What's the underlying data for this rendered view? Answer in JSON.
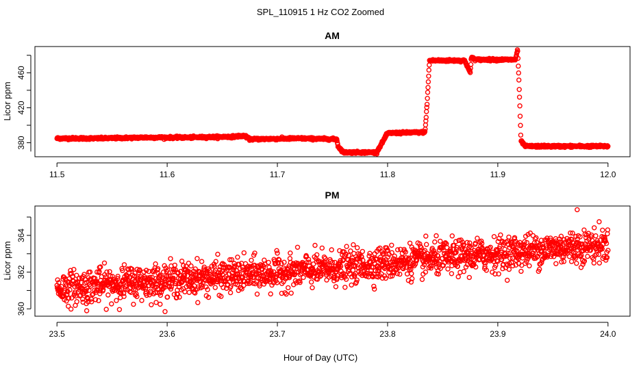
{
  "figure": {
    "title": "SPL_110915  1 Hz CO2 Zoomed",
    "xlabel": "Hour of Day (UTC)"
  },
  "colors": {
    "points": "#ff0000",
    "axes": "#000000",
    "background": "#ffffff"
  },
  "chart_data": [
    {
      "type": "scatter",
      "title": "AM",
      "xlabel": "Hour of Day (UTC)",
      "ylabel": "Licor ppm",
      "xlim": [
        11.5,
        12.0
      ],
      "ylim": [
        364,
        490
      ],
      "xticks": [
        11.5,
        11.6,
        11.7,
        11.8,
        11.9,
        12.0
      ],
      "xtick_labels": [
        "11.5",
        "11.6",
        "11.7",
        "11.8",
        "11.9",
        "12.0"
      ],
      "yticks": [
        380,
        420,
        460
      ],
      "ytick_labels": [
        "380",
        "420",
        "460"
      ],
      "grid": false,
      "marker": "open-circle",
      "series": [
        {
          "x": [
            11.5,
            11.54,
            11.58,
            11.62,
            11.66,
            11.67,
            11.675,
            11.72,
            11.754,
            11.755,
            11.76,
            11.79,
            11.795,
            11.8,
            11.834,
            11.836,
            11.838,
            11.87,
            11.875,
            11.876,
            11.88,
            11.916,
            11.918,
            11.919,
            11.92,
            11.921,
            11.925,
            11.96,
            12.0
          ],
          "y": [
            385,
            385,
            386,
            386,
            387,
            388,
            384,
            385,
            384,
            376,
            369,
            369,
            380,
            391,
            392,
            428,
            474,
            474,
            460,
            478,
            475,
            475,
            487,
            456,
            422,
            382,
            376,
            376,
            376
          ]
        }
      ]
    },
    {
      "type": "scatter",
      "title": "PM",
      "xlabel": "Hour of Day (UTC)",
      "ylabel": "Licor ppm",
      "xlim": [
        23.5,
        24.0
      ],
      "ylim": [
        359.6,
        365.6
      ],
      "xticks": [
        23.5,
        23.6,
        23.7,
        23.8,
        23.9,
        24.0
      ],
      "xtick_labels": [
        "23.5",
        "23.6",
        "23.7",
        "23.8",
        "23.9",
        "24.0"
      ],
      "yticks": [
        360,
        362,
        364
      ],
      "ytick_labels": [
        "360",
        "362",
        "364"
      ],
      "grid": false,
      "marker": "open-circle",
      "series": [
        {
          "x": [
            23.5,
            23.55,
            23.6,
            23.65,
            23.7,
            23.75,
            23.8,
            23.85,
            23.9,
            23.95,
            24.0
          ],
          "y": [
            361.1,
            361.35,
            361.55,
            361.75,
            361.95,
            362.2,
            362.5,
            362.75,
            363.0,
            363.3,
            363.5
          ],
          "spread_sd": 0.45,
          "outliers": [
            [
              23.972,
              365.4
            ],
            [
              23.527,
              359.9
            ],
            [
              23.59,
              360.35
            ]
          ]
        }
      ]
    }
  ]
}
